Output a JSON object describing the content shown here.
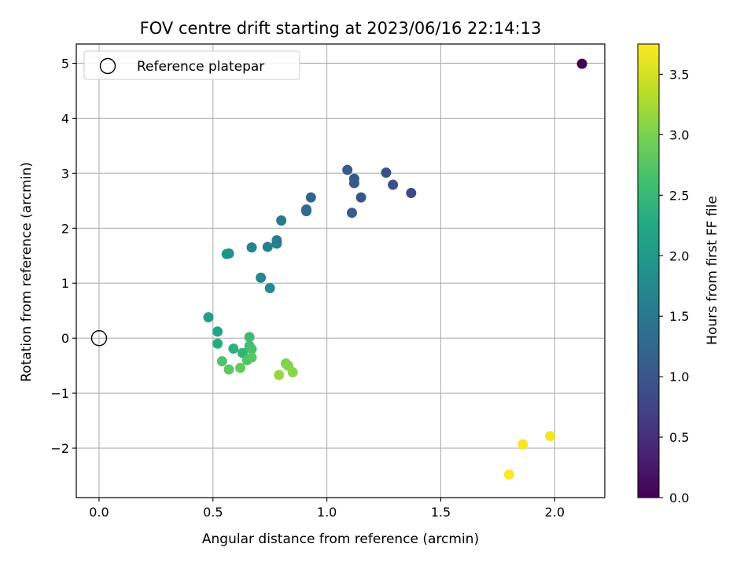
{
  "chart_data": {
    "type": "scatter",
    "title": "FOV centre drift starting at 2023/06/16 22:14:13",
    "xlabel": "Angular distance from reference (arcmin)",
    "ylabel": "Rotation from reference (arcmin)",
    "xlim": [
      -0.1,
      2.22
    ],
    "ylim": [
      -2.9,
      5.35
    ],
    "xticks": [
      0.0,
      0.5,
      1.0,
      1.5,
      2.0
    ],
    "xtick_labels": [
      "0.0",
      "0.5",
      "1.0",
      "1.5",
      "2.0"
    ],
    "yticks": [
      -2,
      -1,
      0,
      1,
      2,
      3,
      4,
      5
    ],
    "ytick_labels": [
      "−2",
      "−1",
      "0",
      "1",
      "2",
      "3",
      "4",
      "5"
    ],
    "grid": true,
    "legend": {
      "position": "top-left",
      "entries": [
        "Reference platepar"
      ]
    },
    "reference_point": {
      "x": 0.0,
      "y": 0.0
    },
    "colorbar": {
      "label": "Hours from first FF file",
      "colormap": "viridis",
      "range": [
        0.0,
        3.75
      ],
      "ticks": [
        0.0,
        0.5,
        1.0,
        1.5,
        2.0,
        2.5,
        3.0,
        3.5
      ],
      "tick_labels": [
        "0.0",
        "0.5",
        "1.0",
        "1.5",
        "2.0",
        "2.5",
        "3.0",
        "3.5"
      ]
    },
    "points": [
      {
        "x": 2.12,
        "y": 4.99,
        "c": 0.0
      },
      {
        "x": 1.37,
        "y": 2.64,
        "c": 0.85
      },
      {
        "x": 1.29,
        "y": 2.79,
        "c": 0.9
      },
      {
        "x": 1.26,
        "y": 3.01,
        "c": 0.93
      },
      {
        "x": 1.15,
        "y": 2.56,
        "c": 1.0
      },
      {
        "x": 1.12,
        "y": 2.9,
        "c": 1.03
      },
      {
        "x": 1.12,
        "y": 2.82,
        "c": 1.05
      },
      {
        "x": 1.09,
        "y": 3.06,
        "c": 1.07
      },
      {
        "x": 1.11,
        "y": 2.28,
        "c": 1.1
      },
      {
        "x": 0.93,
        "y": 2.56,
        "c": 1.25
      },
      {
        "x": 0.91,
        "y": 2.34,
        "c": 1.3
      },
      {
        "x": 0.91,
        "y": 2.31,
        "c": 1.33
      },
      {
        "x": 0.8,
        "y": 2.14,
        "c": 1.5
      },
      {
        "x": 0.78,
        "y": 1.78,
        "c": 1.55
      },
      {
        "x": 0.78,
        "y": 1.72,
        "c": 1.58
      },
      {
        "x": 0.74,
        "y": 1.66,
        "c": 1.62
      },
      {
        "x": 0.67,
        "y": 1.65,
        "c": 1.67
      },
      {
        "x": 0.71,
        "y": 1.1,
        "c": 1.73
      },
      {
        "x": 0.75,
        "y": 0.91,
        "c": 1.78
      },
      {
        "x": 0.57,
        "y": 1.54,
        "c": 1.85
      },
      {
        "x": 0.56,
        "y": 1.53,
        "c": 1.9
      },
      {
        "x": 0.48,
        "y": 0.38,
        "c": 2.1
      },
      {
        "x": 0.52,
        "y": 0.12,
        "c": 2.2
      },
      {
        "x": 0.52,
        "y": -0.1,
        "c": 2.3
      },
      {
        "x": 0.59,
        "y": -0.19,
        "c": 2.38
      },
      {
        "x": 0.63,
        "y": -0.27,
        "c": 2.45
      },
      {
        "x": 0.66,
        "y": 0.02,
        "c": 2.55
      },
      {
        "x": 0.66,
        "y": -0.14,
        "c": 2.6
      },
      {
        "x": 0.67,
        "y": -0.2,
        "c": 2.65
      },
      {
        "x": 0.54,
        "y": -0.42,
        "c": 2.7
      },
      {
        "x": 0.65,
        "y": -0.4,
        "c": 2.72
      },
      {
        "x": 0.67,
        "y": -0.35,
        "c": 2.75
      },
      {
        "x": 0.57,
        "y": -0.57,
        "c": 2.8
      },
      {
        "x": 0.62,
        "y": -0.54,
        "c": 2.85
      },
      {
        "x": 0.82,
        "y": -0.46,
        "c": 3.0
      },
      {
        "x": 0.83,
        "y": -0.5,
        "c": 3.05
      },
      {
        "x": 0.85,
        "y": -0.62,
        "c": 3.1
      },
      {
        "x": 0.79,
        "y": -0.67,
        "c": 3.15
      },
      {
        "x": 1.98,
        "y": -1.78,
        "c": 3.7
      },
      {
        "x": 1.86,
        "y": -1.93,
        "c": 3.72
      },
      {
        "x": 1.8,
        "y": -2.48,
        "c": 3.74
      }
    ]
  }
}
